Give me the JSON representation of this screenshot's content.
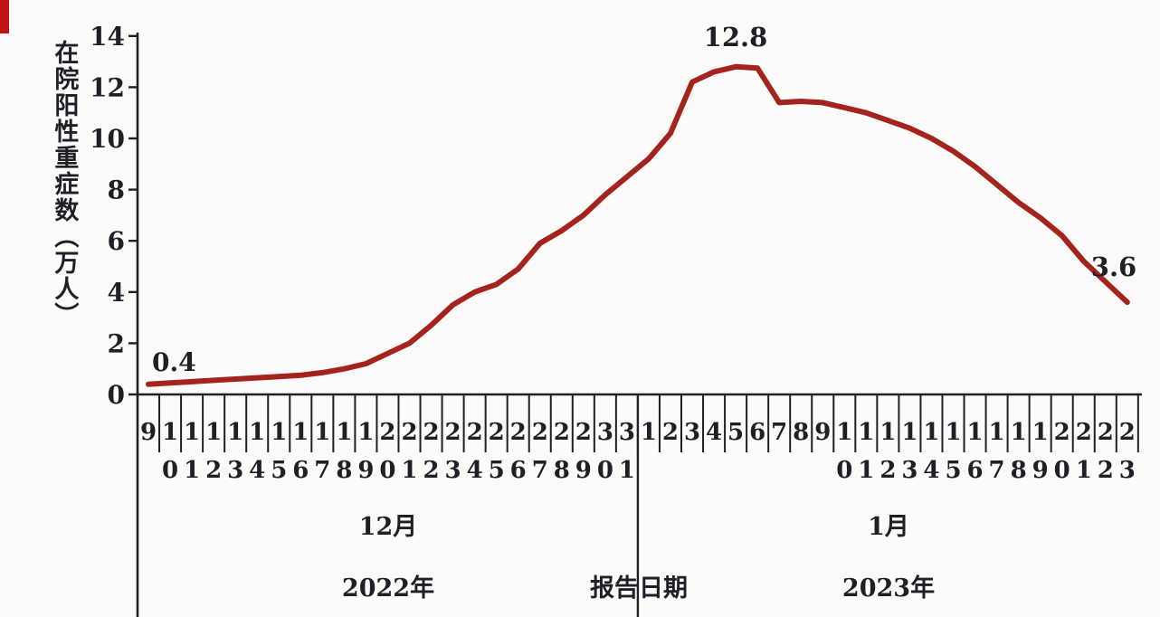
{
  "page": {
    "background": "#fcfbfa"
  },
  "decor": {
    "corner_strip_color": "#c01414"
  },
  "chart_data": {
    "type": "line",
    "title": "",
    "ylabel": "在院阳性重症数（万人）",
    "x_axis_title": "报告日期",
    "ylim": [
      0,
      14
    ],
    "y_ticks": [
      0,
      2,
      4,
      6,
      8,
      10,
      12,
      14
    ],
    "grid": false,
    "legend": "none",
    "line_color": "#a5231d",
    "axis_color": "#1f1f28",
    "groups": [
      {
        "month": "12月",
        "year": "2022年",
        "days": [
          "9",
          "10",
          "11",
          "12",
          "13",
          "14",
          "15",
          "16",
          "17",
          "18",
          "19",
          "20",
          "21",
          "22",
          "23",
          "24",
          "25",
          "26",
          "27",
          "28",
          "29",
          "30",
          "31"
        ]
      },
      {
        "month": "1月",
        "year": "2023年",
        "days": [
          "1",
          "2",
          "3",
          "4",
          "5",
          "6",
          "7",
          "8",
          "9",
          "10",
          "11",
          "12",
          "13",
          "14",
          "15",
          "16",
          "17",
          "18",
          "19",
          "20",
          "21",
          "22",
          "23"
        ]
      }
    ],
    "values": [
      0.4,
      0.45,
      0.5,
      0.55,
      0.6,
      0.65,
      0.7,
      0.75,
      0.85,
      1.0,
      1.2,
      1.6,
      2.0,
      2.7,
      3.5,
      4.0,
      4.3,
      4.9,
      5.9,
      6.4,
      7.0,
      7.8,
      8.5,
      9.2,
      10.2,
      12.2,
      12.6,
      12.8,
      12.75,
      11.4,
      11.45,
      11.4,
      11.2,
      11.0,
      10.7,
      10.4,
      10.0,
      9.5,
      8.9,
      8.2,
      7.5,
      6.9,
      6.2,
      5.2,
      4.4,
      3.6
    ],
    "annotations": [
      {
        "label": "0.4",
        "day_index": 0
      },
      {
        "label": "12.8",
        "day_index": 27
      },
      {
        "label": "3.6",
        "day_index": 45
      }
    ]
  }
}
